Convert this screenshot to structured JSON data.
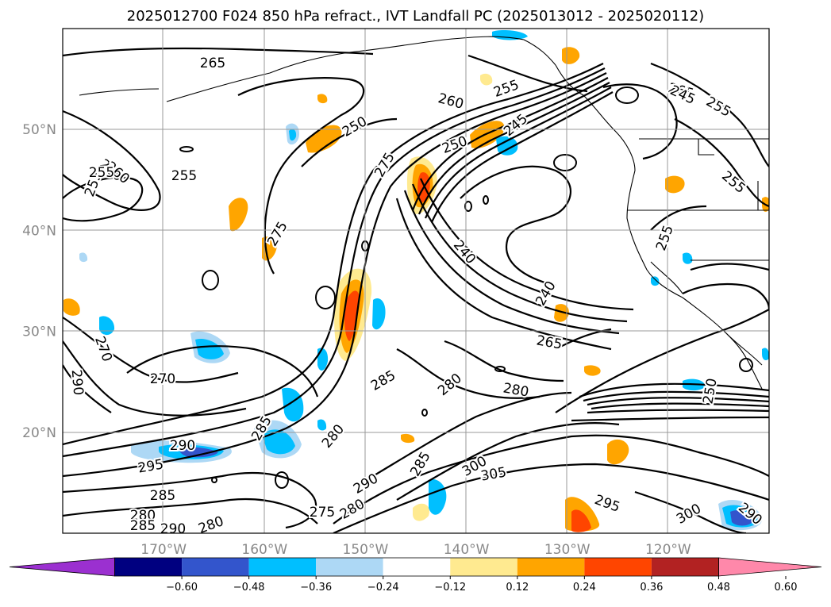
{
  "title": "2025012700 F024 850 hPa refract., IVT Landfall PC (2025013012 - 2025020112)",
  "map": {
    "lat_labels": [
      {
        "lat": 50,
        "text": "50°N"
      },
      {
        "lat": 40,
        "text": "40°N"
      },
      {
        "lat": 30,
        "text": "30°N"
      },
      {
        "lat": 20,
        "text": "20°N"
      }
    ],
    "lon_labels": [
      {
        "lon": -170,
        "text": "170°W"
      },
      {
        "lon": -160,
        "text": "160°W"
      },
      {
        "lon": -150,
        "text": "150°W"
      },
      {
        "lon": -140,
        "text": "140°W"
      },
      {
        "lon": -130,
        "text": "130°W"
      },
      {
        "lon": -120,
        "text": "120°W"
      }
    ],
    "extent": {
      "lon": [
        -180,
        -110
      ],
      "lat": [
        10,
        60
      ]
    },
    "gridlines": true
  },
  "contour_labels": [
    "265",
    "260",
    "255",
    "250",
    "255",
    "260",
    "255",
    "275",
    "275",
    "250",
    "245",
    "255",
    "240",
    "240",
    "265",
    "265",
    "255",
    "250",
    "270",
    "290",
    "270",
    "285",
    "280",
    "280",
    "280",
    "285",
    "290",
    "295",
    "285",
    "280",
    "285",
    "290",
    "280",
    "290",
    "275",
    "280",
    "285",
    "300",
    "305",
    "295",
    "300",
    "290",
    "255",
    "245",
    "260",
    "255"
  ],
  "colorbar": {
    "ticks": [
      "−0.60",
      "−0.48",
      "−0.36",
      "−0.24",
      "−0.12",
      "0.12",
      "0.24",
      "0.36",
      "0.48",
      "0.60"
    ],
    "colors": [
      "#9b30d0",
      "#000080",
      "#3355cc",
      "#00bfff",
      "#add8f5",
      "#ffffff",
      "#ffea90",
      "#ffa500",
      "#ff4500",
      "#b22222",
      "#ff88aa"
    ]
  }
}
